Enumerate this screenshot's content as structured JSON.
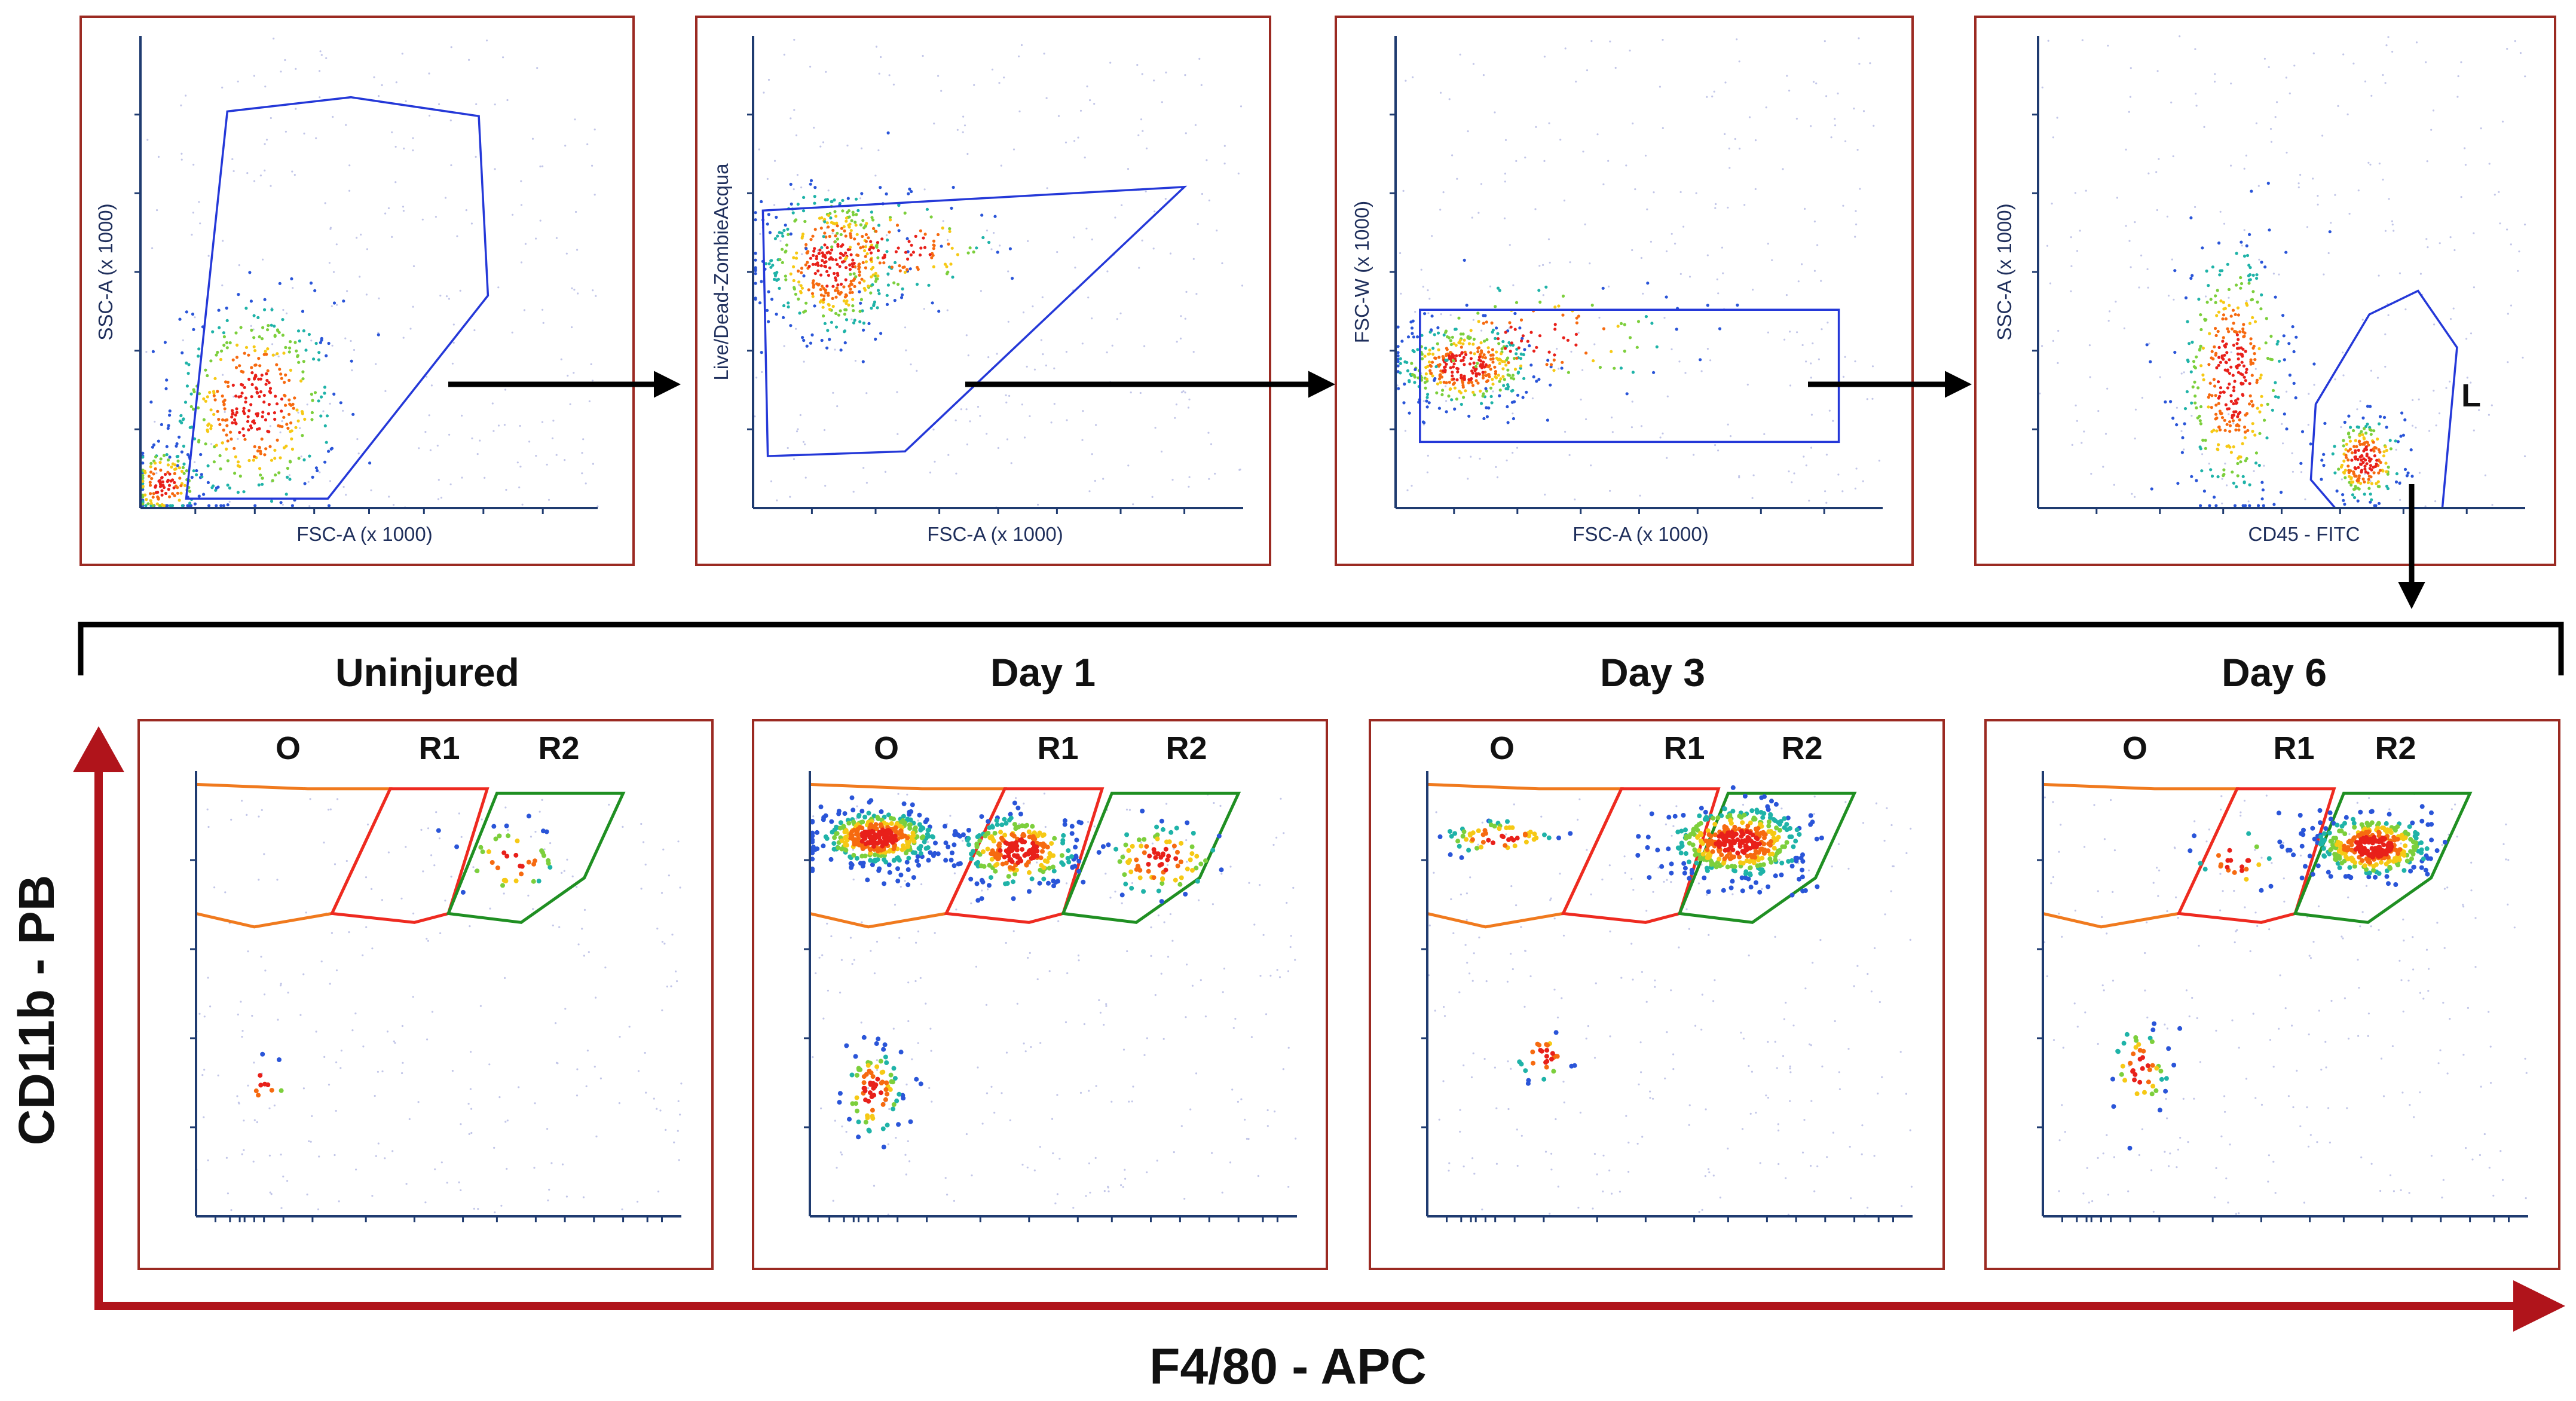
{
  "chart_data": [
    {
      "type": "scatter",
      "id": "p1",
      "title": "",
      "xlabel": "FSC-A (x 1000)",
      "ylabel": "SSC-A (x 1000)",
      "populations": [
        {
          "x": 0.25,
          "y": 0.22,
          "sx": 0.09,
          "sy": 0.11,
          "n": 420
        },
        {
          "x": 0.05,
          "y": 0.05,
          "sx": 0.04,
          "sy": 0.04,
          "n": 160
        }
      ],
      "gate": {
        "color": "#2438d8",
        "points": [
          [
            0.1,
            0.02
          ],
          [
            0.19,
            0.84
          ],
          [
            0.46,
            0.87
          ],
          [
            0.74,
            0.83
          ],
          [
            0.76,
            0.45
          ],
          [
            0.41,
            0.02
          ]
        ]
      }
    },
    {
      "type": "scatter",
      "id": "p2",
      "title": "",
      "xlabel": "FSC-A  (x 1000)",
      "ylabel": "Live/Dead-ZombieAcqua",
      "populations": [
        {
          "x": 0.16,
          "y": 0.52,
          "sx": 0.07,
          "sy": 0.08,
          "n": 420
        },
        {
          "x": 0.3,
          "y": 0.55,
          "sx": 0.1,
          "sy": 0.05,
          "n": 140
        }
      ],
      "gate": {
        "color": "#2438d8",
        "points": [
          [
            0.03,
            0.11
          ],
          [
            0.02,
            0.63
          ],
          [
            0.88,
            0.68
          ],
          [
            0.31,
            0.12
          ]
        ]
      }
    },
    {
      "type": "scatter",
      "id": "p3",
      "title": "",
      "xlabel": "FSC-A (x 1000)",
      "ylabel": "FSC-W (x 1000)",
      "populations": [
        {
          "x": 0.14,
          "y": 0.3,
          "sx": 0.07,
          "sy": 0.045,
          "n": 380
        },
        {
          "x": 0.3,
          "y": 0.36,
          "sx": 0.14,
          "sy": 0.06,
          "n": 120
        }
      ],
      "gate": {
        "color": "#2438d8",
        "points": [
          [
            0.05,
            0.14
          ],
          [
            0.05,
            0.42
          ],
          [
            0.91,
            0.42
          ],
          [
            0.91,
            0.14
          ]
        ]
      }
    },
    {
      "type": "scatter",
      "id": "p4",
      "title": "",
      "xlabel": "CD45 - FITC",
      "ylabel": "SSC-A (x 1000)",
      "populations": [
        {
          "x": 0.4,
          "y": 0.28,
          "sx": 0.055,
          "sy": 0.14,
          "n": 400
        },
        {
          "x": 0.67,
          "y": 0.1,
          "sx": 0.04,
          "sy": 0.045,
          "n": 220
        }
      ],
      "gate": {
        "color": "#2438d8",
        "points": [
          [
            0.56,
            0.06
          ],
          [
            0.61,
            0.0
          ],
          [
            0.83,
            0.0
          ],
          [
            0.86,
            0.34
          ],
          [
            0.78,
            0.46
          ],
          [
            0.68,
            0.41
          ],
          [
            0.57,
            0.22
          ]
        ]
      },
      "gate_label": "L"
    },
    {
      "type": "scatter",
      "id": "d0",
      "title": "Uninjured",
      "xlabel": "F4/80 - APC",
      "ylabel": "CD11b - PB",
      "populations": [
        {
          "x": 0.65,
          "y": 0.8,
          "sx": 0.05,
          "sy": 0.04,
          "n": 40
        },
        {
          "x": 0.14,
          "y": 0.3,
          "sx": 0.03,
          "sy": 0.03,
          "n": 10
        }
      ]
    },
    {
      "type": "scatter",
      "id": "d1",
      "title": "Day 1",
      "xlabel": "F4/80 - APC",
      "ylabel": "CD11b - PB",
      "populations": [
        {
          "x": 0.14,
          "y": 0.85,
          "sx": 0.06,
          "sy": 0.03,
          "n": 420
        },
        {
          "x": 0.43,
          "y": 0.82,
          "sx": 0.06,
          "sy": 0.04,
          "n": 260
        },
        {
          "x": 0.72,
          "y": 0.8,
          "sx": 0.06,
          "sy": 0.04,
          "n": 90
        },
        {
          "x": 0.13,
          "y": 0.28,
          "sx": 0.03,
          "sy": 0.05,
          "n": 90
        }
      ]
    },
    {
      "type": "scatter",
      "id": "d3",
      "title": "Day 3",
      "xlabel": "F4/80 - APC",
      "ylabel": "CD11b - PB",
      "populations": [
        {
          "x": 0.15,
          "y": 0.85,
          "sx": 0.06,
          "sy": 0.02,
          "n": 60
        },
        {
          "x": 0.64,
          "y": 0.84,
          "sx": 0.07,
          "sy": 0.04,
          "n": 420
        },
        {
          "x": 0.24,
          "y": 0.36,
          "sx": 0.03,
          "sy": 0.03,
          "n": 30
        }
      ]
    },
    {
      "type": "scatter",
      "id": "d6",
      "title": "Day 6",
      "xlabel": "F4/80 - APC",
      "ylabel": "CD11b - PB",
      "populations": [
        {
          "x": 0.68,
          "y": 0.83,
          "sx": 0.06,
          "sy": 0.035,
          "n": 380
        },
        {
          "x": 0.4,
          "y": 0.8,
          "sx": 0.04,
          "sy": 0.04,
          "n": 25
        },
        {
          "x": 0.2,
          "y": 0.33,
          "sx": 0.03,
          "sy": 0.05,
          "n": 50
        }
      ]
    }
  ],
  "gate_labels": {
    "o": "O",
    "r1": "R1",
    "r2": "R2"
  },
  "macrophage_gates": {
    "orange": [
      [
        0.0,
        0.97
      ],
      [
        0.23,
        0.96
      ],
      [
        0.4,
        0.96
      ],
      [
        0.28,
        0.68
      ],
      [
        0.12,
        0.65
      ],
      [
        0.0,
        0.68
      ]
    ],
    "red": [
      [
        0.28,
        0.68
      ],
      [
        0.4,
        0.96
      ],
      [
        0.6,
        0.96
      ],
      [
        0.52,
        0.68
      ],
      [
        0.45,
        0.66
      ]
    ],
    "green": [
      [
        0.52,
        0.68
      ],
      [
        0.62,
        0.95
      ],
      [
        0.88,
        0.95
      ],
      [
        0.8,
        0.76
      ],
      [
        0.67,
        0.66
      ]
    ]
  },
  "bottom_axes": {
    "y_title": "CD11b - PB",
    "x_title": "F4/80 - APC"
  }
}
